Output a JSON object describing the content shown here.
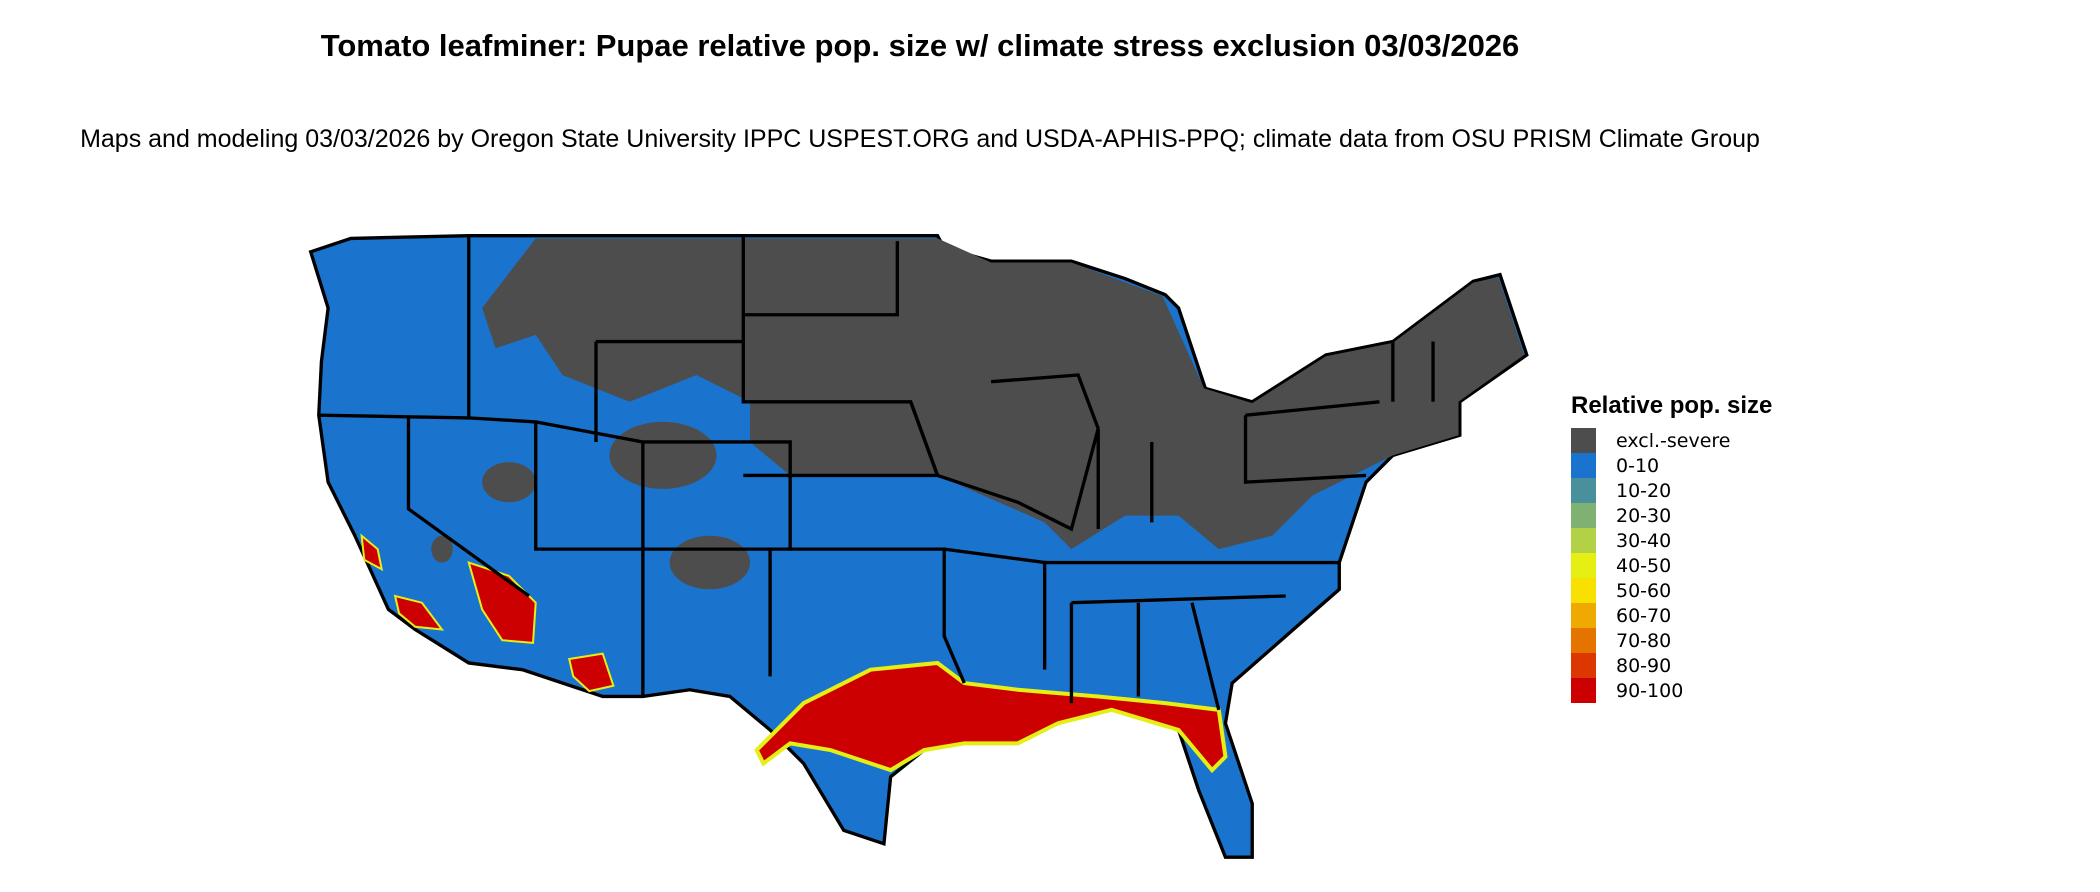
{
  "title": "Tomato leafminer: Pupae relative pop. size w/ climate stress exclusion 03/03/2026",
  "subtitle": "Maps and modeling 03/03/2026 by Oregon State University IPPC USPEST.ORG and USDA-APHIS-PPQ; climate data from OSU PRISM Climate Group",
  "legend": {
    "title": "Relative pop. size",
    "items": [
      {
        "label": "excl.-severe",
        "color": "#4d4d4d"
      },
      {
        "label": "0-10",
        "color": "#1a73cc"
      },
      {
        "label": "10-20",
        "color": "#4a8f9c"
      },
      {
        "label": "20-30",
        "color": "#7fb173"
      },
      {
        "label": "30-40",
        "color": "#b3d147"
      },
      {
        "label": "40-50",
        "color": "#e5ef14"
      },
      {
        "label": "50-60",
        "color": "#f8e000"
      },
      {
        "label": "60-70",
        "color": "#eeaa00"
      },
      {
        "label": "70-80",
        "color": "#e57300"
      },
      {
        "label": "80-90",
        "color": "#dc3700"
      },
      {
        "label": "90-100",
        "color": "#cc0000"
      }
    ]
  },
  "map": {
    "region": "Contiguous United States",
    "colors": {
      "excluded": "#4d4d4d",
      "low": "#1a73cc",
      "high": "#cc0000",
      "edge": "#e5ef14"
    }
  }
}
